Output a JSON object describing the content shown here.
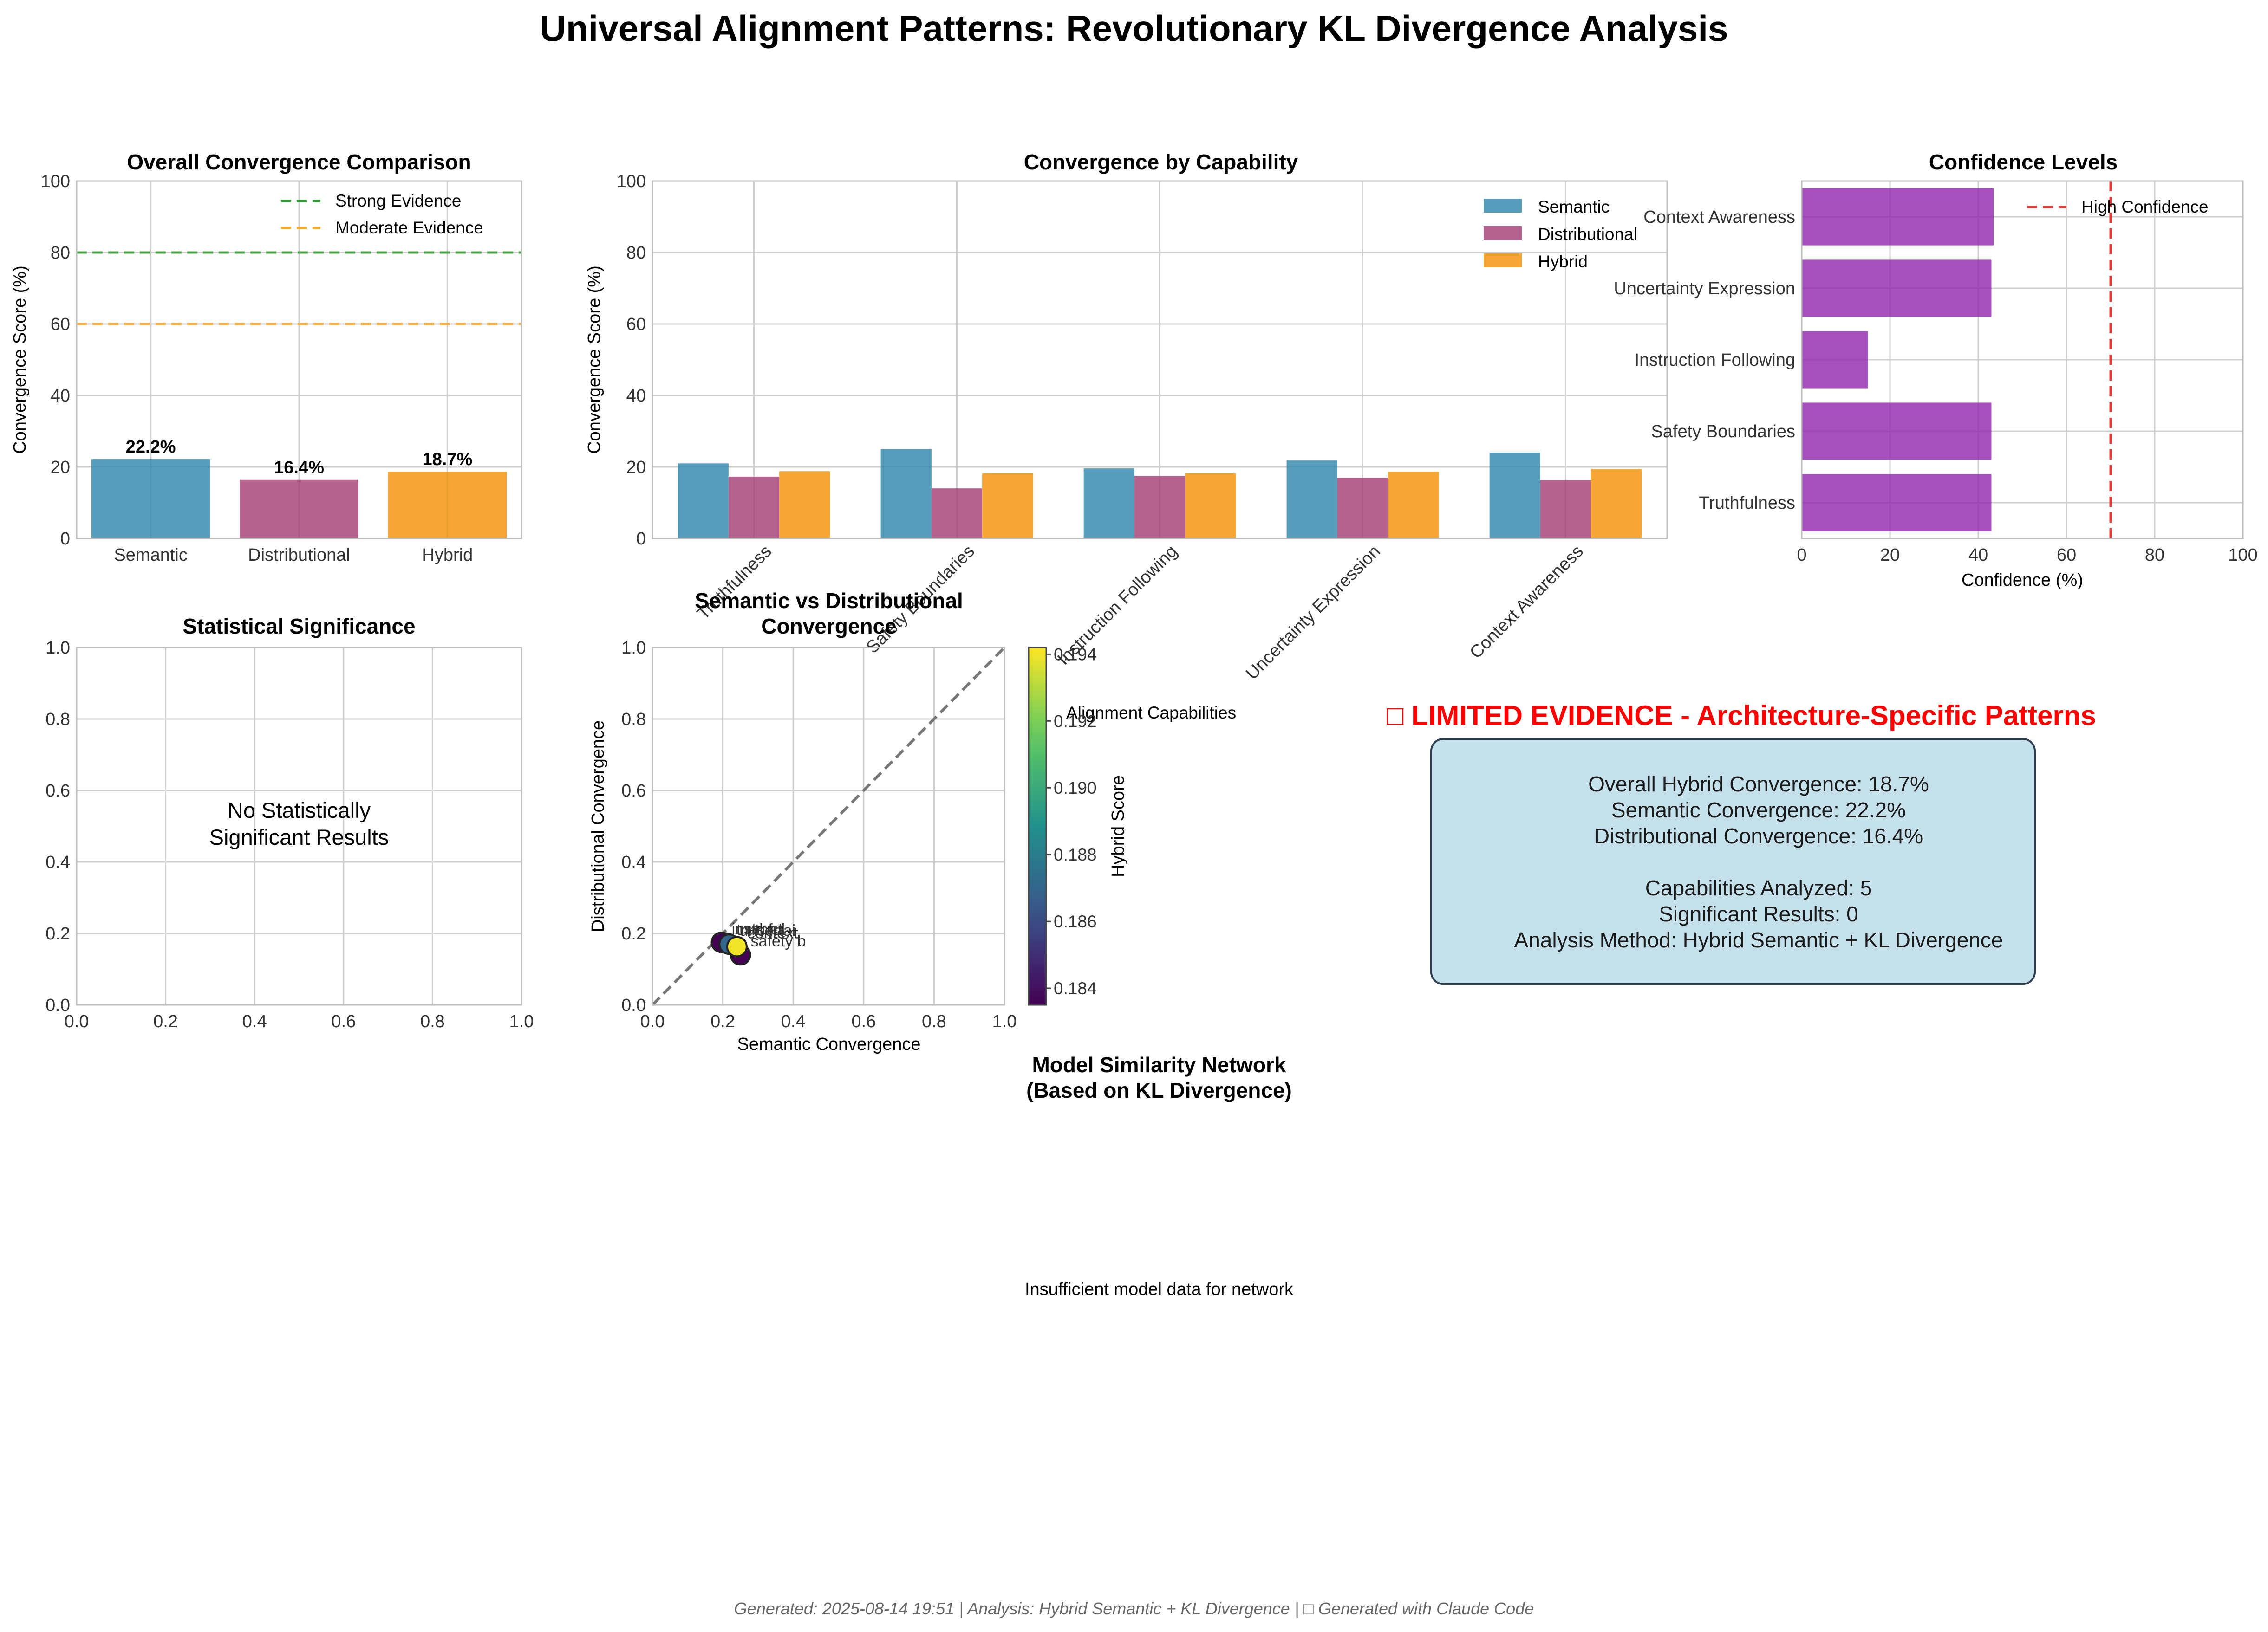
{
  "figure": {
    "title": "Universal Alignment Patterns: Revolutionary KL Divergence Analysis",
    "footer": "Generated: 2025-08-14 19:51 | Analysis: Hybrid Semantic + KL Divergence | □ Generated with Claude Code"
  },
  "colors": {
    "semantic": "#2e86ab",
    "distributional": "#a23b72",
    "hybrid": "#f18f01",
    "confidence": "#8e24aa",
    "strong_line": "#2ca02c",
    "moderate_line": "#ffa726",
    "high_conf_line": "#e53935",
    "verdict": "#ff0000",
    "box_fill": "#c5e2ec"
  },
  "chart_data": [
    {
      "id": "overall",
      "type": "bar",
      "title": "Overall Convergence Comparison",
      "ylabel": "Convergence Score (%)",
      "ylim": [
        0,
        100
      ],
      "yticks": [
        0,
        20,
        40,
        60,
        80,
        100
      ],
      "categories": [
        "Semantic",
        "Distributional",
        "Hybrid"
      ],
      "values": [
        22.2,
        16.4,
        18.7
      ],
      "value_labels": [
        "22.2%",
        "16.4%",
        "18.7%"
      ],
      "reference_lines": [
        {
          "name": "Strong Evidence",
          "y": 80
        },
        {
          "name": "Moderate Evidence",
          "y": 60
        }
      ],
      "legend": "top-right",
      "grid": true
    },
    {
      "id": "by_capability",
      "type": "bar",
      "title": "Convergence by Capability",
      "ylabel": "Convergence Score (%)",
      "ylim": [
        0,
        100
      ],
      "yticks": [
        0,
        20,
        40,
        60,
        80,
        100
      ],
      "categories": [
        "Truthfulness",
        "Safety Boundaries",
        "Instruction Following",
        "Uncertainty Expression",
        "Context Awareness"
      ],
      "series": [
        {
          "name": "Semantic",
          "values": [
            21.0,
            25.0,
            19.6,
            21.8,
            24.0
          ]
        },
        {
          "name": "Distributional",
          "values": [
            17.3,
            14.0,
            17.5,
            17.0,
            16.3
          ]
        },
        {
          "name": "Hybrid",
          "values": [
            18.8,
            18.2,
            18.2,
            18.7,
            19.4
          ]
        }
      ],
      "legend": "top-right",
      "grid": true
    },
    {
      "id": "confidence",
      "type": "bar",
      "orientation": "horizontal",
      "title": "Confidence Levels",
      "xlabel": "Confidence (%)",
      "xlim": [
        0,
        100
      ],
      "xticks": [
        0,
        20,
        40,
        60,
        80,
        100
      ],
      "categories": [
        "Truthfulness",
        "Safety Boundaries",
        "Instruction Following",
        "Uncertainty Expression",
        "Context Awareness"
      ],
      "values": [
        43,
        43,
        15,
        43,
        43.5
      ],
      "reference_lines": [
        {
          "name": "High Confidence",
          "x": 70
        }
      ],
      "legend": "top-right",
      "grid": true
    },
    {
      "id": "significance",
      "type": "table",
      "title": "Statistical Significance",
      "xlim": [
        0,
        1
      ],
      "ylim": [
        0,
        1
      ],
      "ticks": [
        "0.0",
        "0.2",
        "0.4",
        "0.6",
        "0.8",
        "1.0"
      ],
      "message": [
        "No Statistically",
        "Significant Results"
      ],
      "grid": true
    },
    {
      "id": "scatter",
      "type": "scatter",
      "title": [
        "Semantic vs Distributional",
        "Convergence"
      ],
      "xlabel": "Semantic Convergence",
      "ylabel": "Distributional Convergence",
      "xlim": [
        0,
        1
      ],
      "ylim": [
        0,
        1
      ],
      "ticks": [
        "0.0",
        "0.2",
        "0.4",
        "0.6",
        "0.8",
        "1.0"
      ],
      "points": [
        {
          "label": "truthful",
          "x": 0.21,
          "y": 0.173,
          "c": 0.188
        },
        {
          "label": "safety b",
          "x": 0.25,
          "y": 0.14,
          "c": 0.182
        },
        {
          "label": "instruct",
          "x": 0.196,
          "y": 0.175,
          "c": 0.1825
        },
        {
          "label": "uncertai",
          "x": 0.218,
          "y": 0.17,
          "c": 0.187
        },
        {
          "label": "context",
          "x": 0.24,
          "y": 0.163,
          "c": 0.194
        }
      ],
      "colorbar": {
        "label": "Hybrid Score",
        "range": [
          0.1835,
          0.1942
        ],
        "ticks": [
          "0.184",
          "0.186",
          "0.188",
          "0.190",
          "0.192",
          "0.194"
        ]
      },
      "legend_label": "Alignment Capabilities",
      "grid": true
    },
    {
      "id": "network",
      "type": "other",
      "title": [
        "Model Similarity Network",
        "(Based on KL Divergence)"
      ],
      "message": "Insufficient model data for network"
    }
  ],
  "summary": {
    "verdict": "□ LIMITED EVIDENCE - Architecture-Specific Patterns",
    "lines": [
      "Overall Hybrid Convergence: 18.7%",
      "Semantic Convergence: 22.2%",
      "Distributional Convergence: 16.4%",
      "",
      "Capabilities Analyzed: 5",
      "Significant Results: 0",
      "Analysis Method: Hybrid Semantic + KL Divergence"
    ]
  }
}
